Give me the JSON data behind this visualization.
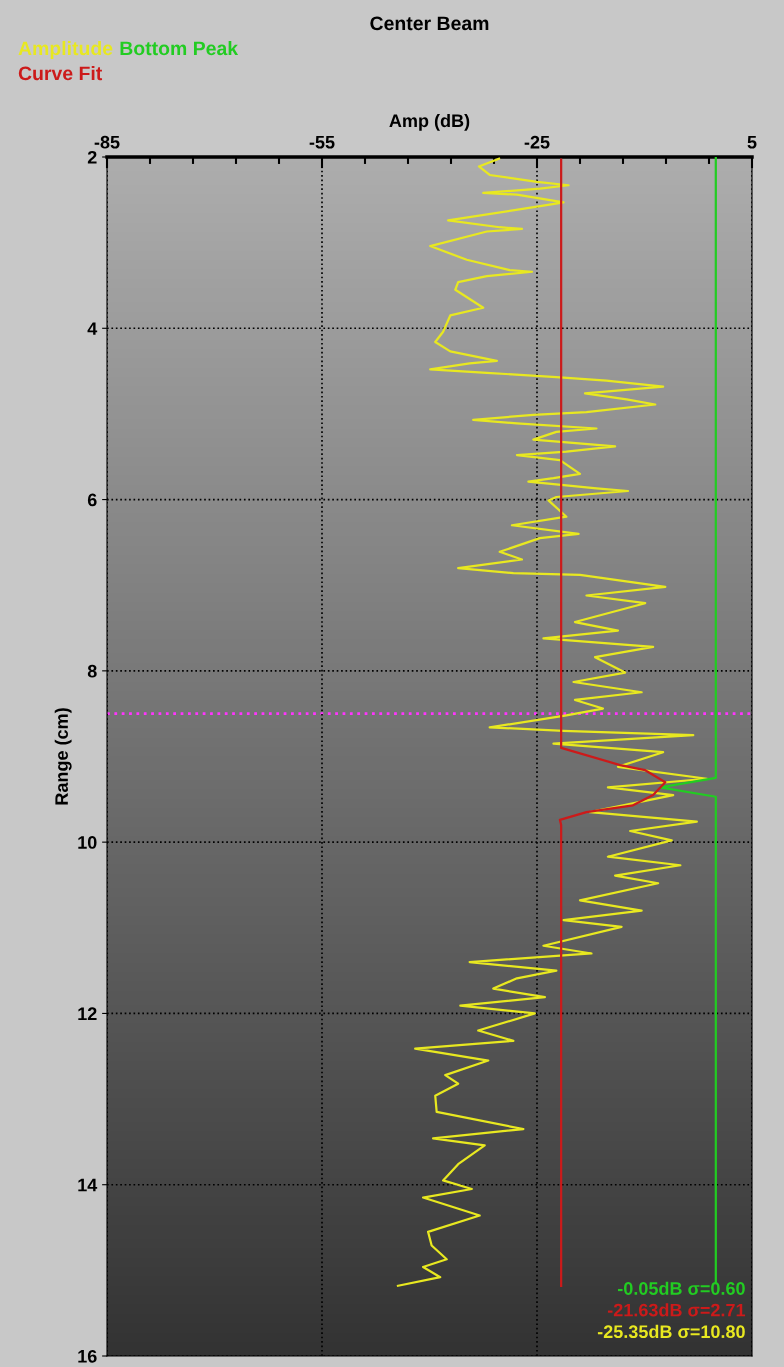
{
  "chart_data": {
    "type": "line",
    "title": "Center Beam",
    "xlabel": "Amp (dB)",
    "ylabel": "Range (cm)",
    "orientation": "horizontal",
    "series": [
      {
        "name": "Amplitude",
        "color": "#e8e820",
        "x": [
          2.02,
          2.11,
          2.21,
          2.29,
          2.33,
          2.37,
          2.42,
          2.44,
          2.53,
          2.58,
          2.74,
          2.82,
          2.84,
          2.87,
          3.04,
          3.2,
          3.32,
          3.34,
          3.39,
          3.46,
          3.55,
          3.76,
          3.85,
          4.04,
          4.16,
          4.27,
          4.38,
          4.41,
          4.48,
          4.52,
          4.57,
          4.61,
          4.68,
          4.76,
          4.83,
          4.89,
          4.98,
          5.01,
          5.07,
          5.11,
          5.17,
          5.21,
          5.3,
          5.38,
          5.44,
          5.48,
          5.54,
          5.7,
          5.75,
          5.79,
          5.87,
          5.9,
          5.97,
          6.01,
          6.2,
          6.3,
          6.4,
          6.45,
          6.61,
          6.7,
          6.8,
          6.86,
          6.88,
          7.02,
          7.12,
          7.21,
          7.43,
          7.53,
          7.62,
          7.72,
          7.84,
          8.02,
          8.13,
          8.25,
          8.34,
          8.44,
          8.52,
          8.66,
          8.7,
          8.75,
          8.85,
          8.95,
          9.12,
          9.26,
          9.36,
          9.45,
          9.65,
          9.76,
          9.87,
          9.98,
          10.17,
          10.27,
          10.39,
          10.48,
          10.68,
          10.8,
          10.91,
          10.99,
          11.21,
          11.3,
          11.4,
          11.5,
          11.59,
          11.71,
          11.81,
          11.91,
          12.0,
          12.2,
          12.32,
          12.41,
          12.55,
          12.72,
          12.82,
          12.96,
          13.15,
          13.35,
          13.46,
          13.54,
          13.76,
          13.95,
          14.05,
          14.15,
          14.36,
          14.55,
          14.71,
          14.87,
          14.96,
          15.08,
          15.18
        ],
        "values": [
          -30.3,
          -33.1,
          -31.6,
          -25.0,
          -20.6,
          -24.6,
          -32.5,
          -27.8,
          -21.3,
          -25.0,
          -37.4,
          -30.2,
          -27.1,
          -32.0,
          -39.9,
          -34.8,
          -28.8,
          -25.7,
          -32.0,
          -36.0,
          -36.4,
          -32.5,
          -37.1,
          -38.1,
          -39.2,
          -37.1,
          -30.6,
          -34.4,
          -39.9,
          -32.0,
          -22.3,
          -15.3,
          -7.4,
          -18.3,
          -12.5,
          -8.5,
          -18.1,
          -25.5,
          -33.9,
          -27.8,
          -16.7,
          -22.3,
          -25.5,
          -14.1,
          -20.9,
          -27.8,
          -21.8,
          -19.0,
          -22.7,
          -26.2,
          -16.7,
          -12.3,
          -22.3,
          -23.4,
          -20.9,
          -28.5,
          -19.2,
          -24.6,
          -30.2,
          -27.1,
          -36.0,
          -28.3,
          -19.0,
          -7.1,
          -18.1,
          -9.9,
          -19.7,
          -13.7,
          -24.1,
          -8.8,
          -16.9,
          -12.7,
          -19.9,
          -10.4,
          -19.7,
          -15.8,
          -20.9,
          -31.6,
          -21.3,
          -3.2,
          -22.7,
          -7.4,
          -13.7,
          -1.3,
          -15.1,
          -6.0,
          -17.6,
          -2.7,
          -12.0,
          -6.2,
          -15.1,
          -5.0,
          -14.1,
          -8.1,
          -19.0,
          -10.4,
          -21.3,
          -13.2,
          -24.1,
          -17.4,
          -34.4,
          -22.3,
          -27.8,
          -31.1,
          -23.9,
          -35.7,
          -25.3,
          -33.2,
          -28.3,
          -42.0,
          -31.8,
          -37.8,
          -36.0,
          -39.2,
          -39.0,
          -26.9,
          -39.5,
          -32.3,
          -36.0,
          -38.1,
          -34.1,
          -40.9,
          -33.0,
          -40.2,
          -39.7,
          -37.6,
          -40.9,
          -38.5,
          -44.4
        ]
      },
      {
        "name": "Bottom Peak",
        "color": "#22cc22",
        "x": [
          2.0,
          9.25,
          9.36,
          9.47,
          15.15
        ],
        "values": [
          -0.05,
          -0.05,
          -7.8,
          -0.05,
          -0.05
        ]
      },
      {
        "name": "Curve Fit",
        "color": "#cc1a1a",
        "x": [
          2.03,
          8.9,
          9.1,
          9.16,
          9.3,
          9.45,
          9.57,
          9.65,
          9.74,
          9.8,
          15.18
        ],
        "values": [
          -21.63,
          -21.63,
          -13.4,
          -9.9,
          -7.1,
          -8.8,
          -11.6,
          -18.1,
          -21.8,
          -21.63,
          -21.63
        ]
      }
    ],
    "xlim": [
      -85,
      5
    ],
    "xticks": [
      -85,
      -55,
      -25,
      5
    ],
    "ylim": [
      16,
      2
    ],
    "yticks": [
      2,
      4,
      6,
      8,
      10,
      12,
      14,
      16
    ],
    "grid": true,
    "legend": "top left",
    "ref_lines": [
      {
        "axis": "y",
        "value": 8.5,
        "color": "#ff33ff",
        "line_style": "dotted"
      }
    ],
    "annotations": [
      "-0.05dB σ=0.60",
      "-21.63dB σ=2.71",
      "-25.35dB σ=10.80"
    ]
  }
}
